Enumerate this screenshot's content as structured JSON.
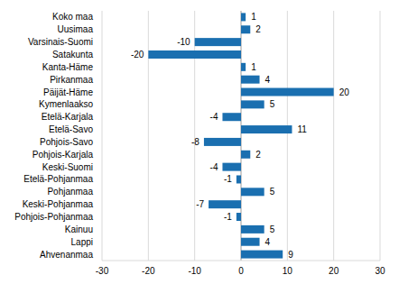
{
  "chart_data": {
    "type": "bar",
    "orientation": "horizontal",
    "categories": [
      "Koko maa",
      "Uusimaa",
      "Varsinais-Suomi",
      "Satakunta",
      "Kanta-Häme",
      "Pirkanmaa",
      "Päijät-Häme",
      "Kymenlaakso",
      "Etelä-Karjala",
      "Etelä-Savo",
      "Pohjois-Savo",
      "Pohjois-Karjala",
      "Keski-Suomi",
      "Etelä-Pohjanmaa",
      "Pohjanmaa",
      "Keski-Pohjanmaa",
      "Pohjois-Pohjanmaa",
      "Kainuu",
      "Lappi",
      "Ahvenanmaa"
    ],
    "values": [
      1,
      2,
      -10,
      -20,
      1,
      4,
      20,
      5,
      -4,
      11,
      -8,
      2,
      -4,
      -1,
      5,
      -7,
      -1,
      5,
      4,
      9
    ],
    "color": "#1a6fb0",
    "xlim": [
      -30,
      30
    ],
    "xticks": [
      -30,
      -20,
      -10,
      0,
      10,
      20,
      30
    ],
    "grid": true,
    "data_labels": true
  }
}
